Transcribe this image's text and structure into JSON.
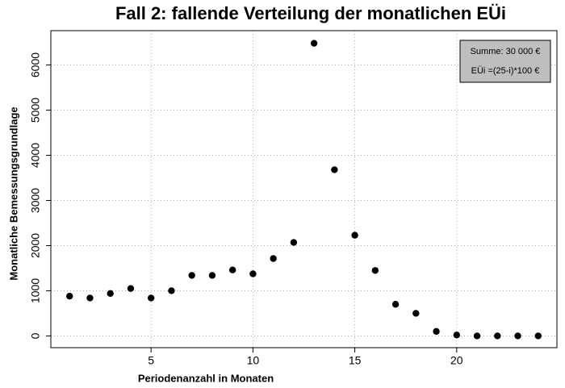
{
  "chart_data": {
    "type": "scatter",
    "title": "Fall 2: fallende Verteilung der monatlichen EÜi",
    "x_label": "Periodenanzahl in Monaten",
    "y_label": "Monatliche Bemessungsgrundlage",
    "x": [
      1,
      2,
      3,
      4,
      5,
      6,
      7,
      8,
      9,
      10,
      11,
      12,
      13,
      14,
      15,
      16,
      17,
      18,
      19,
      20,
      21,
      22,
      23,
      24
    ],
    "values": [
      880,
      840,
      940,
      1050,
      840,
      1000,
      1340,
      1340,
      1460,
      1375,
      1714,
      2070,
      6480,
      3680,
      2230,
      1450,
      700,
      500,
      100,
      20,
      0,
      0,
      0,
      0
    ],
    "color": "#000000",
    "xlim": [
      0.08,
      24.92
    ],
    "xticks": [
      5,
      10,
      15,
      20
    ],
    "ylim": [
      -260,
      6760
    ],
    "yticks": [
      0,
      1000,
      2000,
      3000,
      4000,
      5000,
      6000
    ],
    "grid": true,
    "legend_position": "top-right",
    "legend_lines": [
      "Summe: 30 000 €",
      "EÜi =(25-i)*100 €"
    ]
  }
}
